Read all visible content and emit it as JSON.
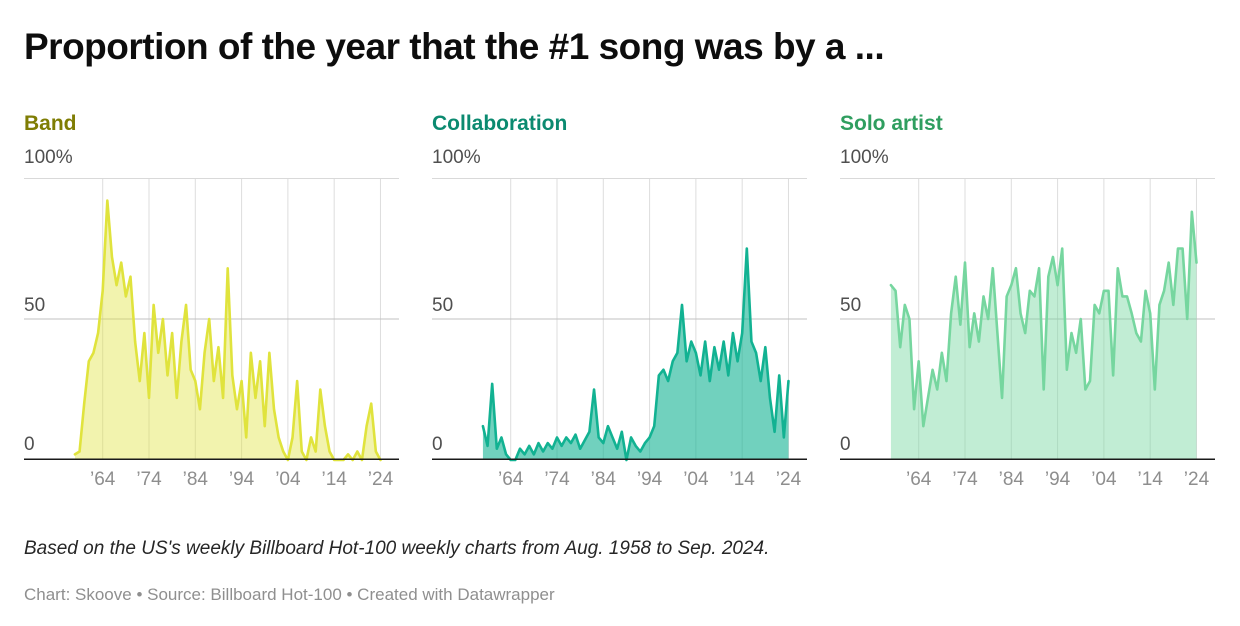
{
  "title": "Proportion of the year that the #1 song was by a ...",
  "footnote": "Based on the US's weekly Billboard Hot-100 weekly charts from Aug. 1958 to Sep. 2024.",
  "credit": "Chart: Skoove • Source: Billboard Hot-100 • Created with Datawrapper",
  "grid": {
    "vertical": "#dddddd",
    "top": "#d9d9d9",
    "mid": "#c1c1c1",
    "baseline": "#1a1a1a"
  },
  "chart_data": [
    {
      "type": "area",
      "title": "Band",
      "label_color": "#7f7d04",
      "line_color": "#e0e33d",
      "fill_color": "rgba(224,227,61,0.42)",
      "x_start": 1958,
      "x_end": 2024,
      "xlim": [
        1947,
        2028
      ],
      "ylim": [
        0,
        100
      ],
      "x_ticks": [
        1964,
        1974,
        1984,
        1994,
        2004,
        2014,
        2024
      ],
      "x_tick_labels": [
        "’64",
        "’74",
        "’84",
        "’94",
        "’04",
        "’14",
        "’24"
      ],
      "y_ticks": [
        100,
        50,
        0
      ],
      "y_tick_labels": [
        "100%",
        "50",
        "0"
      ],
      "values": [
        2,
        3,
        20,
        35,
        38,
        45,
        60,
        92,
        72,
        62,
        70,
        58,
        65,
        42,
        28,
        45,
        22,
        55,
        38,
        50,
        30,
        45,
        22,
        42,
        55,
        32,
        28,
        18,
        38,
        50,
        28,
        40,
        22,
        68,
        30,
        18,
        28,
        8,
        38,
        22,
        35,
        12,
        38,
        18,
        8,
        3,
        0,
        8,
        28,
        3,
        0,
        8,
        3,
        25,
        12,
        3,
        0,
        0,
        0,
        2,
        0,
        3,
        0,
        12,
        20,
        3,
        0
      ]
    },
    {
      "type": "area",
      "title": "Collaboration",
      "label_color": "#0b8a70",
      "line_color": "#12b292",
      "fill_color": "rgba(18,178,146,0.60)",
      "x_start": 1958,
      "x_end": 2024,
      "xlim": [
        1947,
        2028
      ],
      "ylim": [
        0,
        100
      ],
      "x_ticks": [
        1964,
        1974,
        1984,
        1994,
        2004,
        2014,
        2024
      ],
      "x_tick_labels": [
        "’64",
        "’74",
        "’84",
        "’94",
        "’04",
        "’14",
        "’24"
      ],
      "y_ticks": [
        100,
        50,
        0
      ],
      "y_tick_labels": [
        "100%",
        "50",
        "0"
      ],
      "values": [
        12,
        5,
        27,
        4,
        8,
        2,
        0,
        0,
        4,
        2,
        5,
        2,
        6,
        3,
        6,
        4,
        8,
        5,
        8,
        6,
        9,
        4,
        7,
        10,
        25,
        8,
        6,
        12,
        8,
        4,
        10,
        0,
        8,
        5,
        3,
        6,
        8,
        12,
        30,
        32,
        28,
        35,
        38,
        55,
        35,
        42,
        38,
        30,
        42,
        28,
        40,
        32,
        42,
        30,
        45,
        35,
        45,
        75,
        42,
        38,
        28,
        40,
        22,
        10,
        30,
        8,
        28
      ]
    },
    {
      "type": "area",
      "title": "Solo artist",
      "label_color": "#2f9e5f",
      "line_color": "#76d69f",
      "fill_color": "rgba(118,214,159,0.45)",
      "x_start": 1958,
      "x_end": 2024,
      "xlim": [
        1947,
        2028
      ],
      "ylim": [
        0,
        100
      ],
      "x_ticks": [
        1964,
        1974,
        1984,
        1994,
        2004,
        2014,
        2024
      ],
      "x_tick_labels": [
        "’64",
        "’74",
        "’84",
        "’94",
        "’04",
        "’14",
        "’24"
      ],
      "y_ticks": [
        100,
        50,
        0
      ],
      "y_tick_labels": [
        "100%",
        "50",
        "0"
      ],
      "values": [
        62,
        60,
        40,
        55,
        50,
        18,
        35,
        12,
        22,
        32,
        25,
        38,
        28,
        52,
        65,
        48,
        70,
        40,
        52,
        42,
        58,
        50,
        68,
        45,
        22,
        58,
        62,
        68,
        52,
        45,
        60,
        58,
        68,
        25,
        65,
        72,
        62,
        75,
        32,
        45,
        38,
        50,
        25,
        28,
        55,
        52,
        60,
        60,
        30,
        68,
        58,
        58,
        52,
        45,
        42,
        60,
        52,
        25,
        55,
        60,
        70,
        55,
        75,
        75,
        50,
        88,
        70
      ]
    }
  ]
}
